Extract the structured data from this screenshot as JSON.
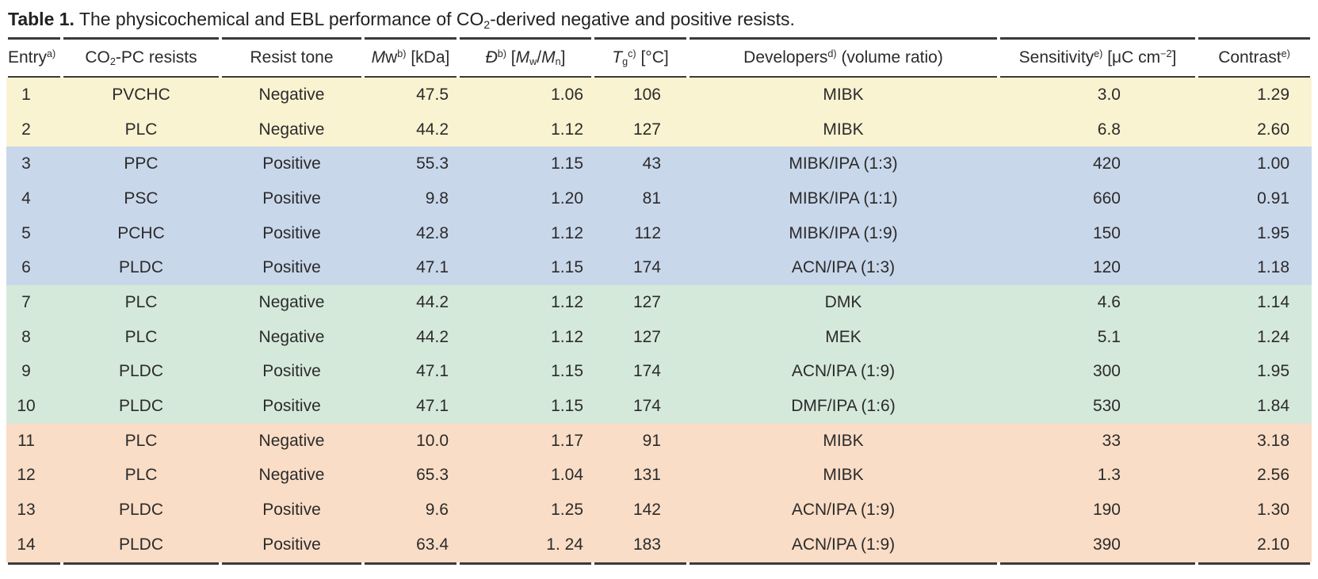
{
  "colors": {
    "group1": "#FAF3D1",
    "group2": "#C9D7EB",
    "group3": "#D5E9DA",
    "group4": "#FADDC6",
    "rule": "#3a3a3a",
    "text": "#2b2b2b"
  },
  "title": {
    "segments": [
      {
        "t": "Table 1.",
        "style": "bold"
      },
      {
        "t": "  The physicochemical and EBL performance of CO"
      },
      {
        "t": "2",
        "style": "sub"
      },
      {
        "t": "-derived negative and positive resists."
      }
    ]
  },
  "table": {
    "headers": [
      {
        "id": "entry",
        "segments": [
          {
            "t": "Entry"
          },
          {
            "t": "a)",
            "style": "sup"
          }
        ]
      },
      {
        "id": "resists",
        "segments": [
          {
            "t": "CO"
          },
          {
            "t": "2",
            "style": "sub"
          },
          {
            "t": "-PC resists"
          }
        ]
      },
      {
        "id": "tone",
        "segments": [
          {
            "t": "Resist tone"
          }
        ]
      },
      {
        "id": "mw",
        "segments": [
          {
            "t": "M",
            "style": "italic"
          },
          {
            "t": "w"
          },
          {
            "t": "b)",
            "style": "sup"
          },
          {
            "t": " [kDa]"
          }
        ]
      },
      {
        "id": "dispersity",
        "segments": [
          {
            "t": "Đ",
            "style": "italic"
          },
          {
            "t": "b)",
            "style": "sup"
          },
          {
            "t": " ["
          },
          {
            "t": "M",
            "style": "italic"
          },
          {
            "t": "w",
            "style": "sub"
          },
          {
            "t": "/"
          },
          {
            "t": "M",
            "style": "italic"
          },
          {
            "t": "n",
            "style": "sub"
          },
          {
            "t": "]"
          }
        ]
      },
      {
        "id": "tg",
        "segments": [
          {
            "t": "T",
            "style": "italic"
          },
          {
            "t": "g",
            "style": "sub"
          },
          {
            "t": "c)",
            "style": "sup"
          },
          {
            "t": " [°C]"
          }
        ]
      },
      {
        "id": "developers",
        "segments": [
          {
            "t": "Developers"
          },
          {
            "t": "d)",
            "style": "sup"
          },
          {
            "t": " (volume ratio)"
          }
        ]
      },
      {
        "id": "sensitivity",
        "segments": [
          {
            "t": "Sensitivity"
          },
          {
            "t": "e)",
            "style": "sup"
          },
          {
            "t": " [μC cm"
          },
          {
            "t": "−2",
            "style": "sup"
          },
          {
            "t": "]"
          }
        ]
      },
      {
        "id": "contrast",
        "segments": [
          {
            "t": "Contrast"
          },
          {
            "t": "e)",
            "style": "sup"
          }
        ]
      }
    ],
    "rows": [
      {
        "entry": "1",
        "resist": "PVCHC",
        "tone": "Negative",
        "mw": "47.5",
        "dispersity": "1.06",
        "tg": "106",
        "developer": "MIBK",
        "sensitivity": "3.0",
        "contrast": "1.29",
        "group": "group1"
      },
      {
        "entry": "2",
        "resist": "PLC",
        "tone": "Negative",
        "mw": "44.2",
        "dispersity": "1.12",
        "tg": "127",
        "developer": "MIBK",
        "sensitivity": "6.8",
        "contrast": "2.60",
        "group": "group1"
      },
      {
        "entry": "3",
        "resist": "PPC",
        "tone": "Positive",
        "mw": "55.3",
        "dispersity": "1.15",
        "tg": "43",
        "developer": "MIBK/IPA (1:3)",
        "sensitivity": "420",
        "contrast": "1.00",
        "group": "group2"
      },
      {
        "entry": "4",
        "resist": "PSC",
        "tone": "Positive",
        "mw": "9.8",
        "dispersity": "1.20",
        "tg": "81",
        "developer": "MIBK/IPA (1:1)",
        "sensitivity": "660",
        "contrast": "0.91",
        "group": "group2"
      },
      {
        "entry": "5",
        "resist": "PCHC",
        "tone": "Positive",
        "mw": "42.8",
        "dispersity": "1.12",
        "tg": "112",
        "developer": "MIBK/IPA (1:9)",
        "sensitivity": "150",
        "contrast": "1.95",
        "group": "group2"
      },
      {
        "entry": "6",
        "resist": "PLDC",
        "tone": "Positive",
        "mw": "47.1",
        "dispersity": "1.15",
        "tg": "174",
        "developer": "ACN/IPA (1:3)",
        "sensitivity": "120",
        "contrast": "1.18",
        "group": "group2"
      },
      {
        "entry": "7",
        "resist": "PLC",
        "tone": "Negative",
        "mw": "44.2",
        "dispersity": "1.12",
        "tg": "127",
        "developer": "DMK",
        "sensitivity": "4.6",
        "contrast": "1.14",
        "group": "group3"
      },
      {
        "entry": "8",
        "resist": "PLC",
        "tone": "Negative",
        "mw": "44.2",
        "dispersity": "1.12",
        "tg": "127",
        "developer": "MEK",
        "sensitivity": "5.1",
        "contrast": "1.24",
        "group": "group3"
      },
      {
        "entry": "9",
        "resist": "PLDC",
        "tone": "Positive",
        "mw": "47.1",
        "dispersity": "1.15",
        "tg": "174",
        "developer": "ACN/IPA (1:9)",
        "sensitivity": "300",
        "contrast": "1.95",
        "group": "group3"
      },
      {
        "entry": "10",
        "resist": "PLDC",
        "tone": "Positive",
        "mw": "47.1",
        "dispersity": "1.15",
        "tg": "174",
        "developer": "DMF/IPA (1:6)",
        "sensitivity": "530",
        "contrast": "1.84",
        "group": "group3"
      },
      {
        "entry": "11",
        "resist": "PLC",
        "tone": "Negative",
        "mw": "10.0",
        "dispersity": "1.17",
        "tg": "91",
        "developer": "MIBK",
        "sensitivity": "33",
        "contrast": "3.18",
        "group": "group4"
      },
      {
        "entry": "12",
        "resist": "PLC",
        "tone": "Negative",
        "mw": "65.3",
        "dispersity": "1.04",
        "tg": "131",
        "developer": "MIBK",
        "sensitivity": "1.3",
        "contrast": "2.56",
        "group": "group4"
      },
      {
        "entry": "13",
        "resist": "PLDC",
        "tone": "Positive",
        "mw": "9.6",
        "dispersity": "1.25",
        "tg": "142",
        "developer": "ACN/IPA (1:9)",
        "sensitivity": "190",
        "contrast": "1.30",
        "group": "group4"
      },
      {
        "entry": "14",
        "resist": "PLDC",
        "tone": "Positive",
        "mw": "63.4",
        "dispersity": "1. 24",
        "tg": "183",
        "developer": "ACN/IPA (1:9)",
        "sensitivity": "390",
        "contrast": "2.10",
        "group": "group4"
      }
    ]
  }
}
